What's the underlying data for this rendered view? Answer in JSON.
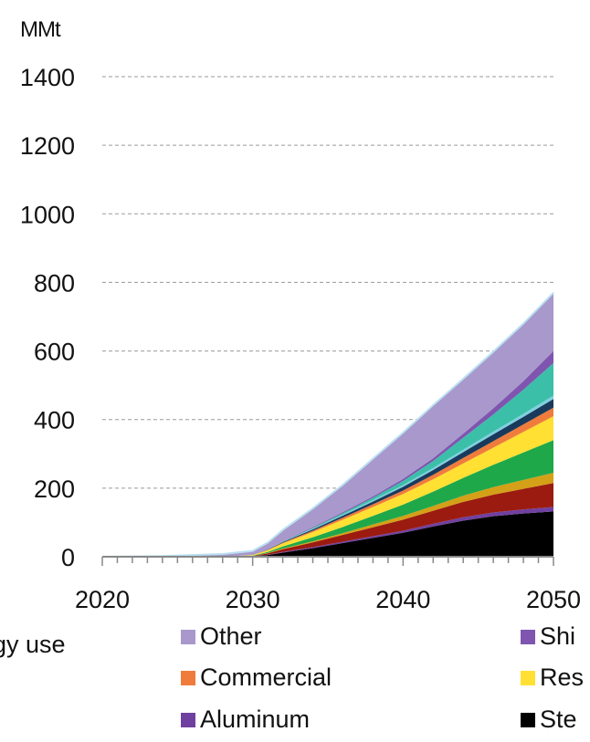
{
  "chart_data": {
    "type": "area",
    "stacked": true,
    "ylabel": "MMt",
    "ylim": [
      0,
      1400
    ],
    "xlim": [
      2020,
      2050
    ],
    "y_ticks": [
      0,
      200,
      400,
      600,
      800,
      1000,
      1200,
      1400
    ],
    "x_ticks": [
      2020,
      2030,
      2040,
      2050
    ],
    "grid": "horizontal dashed",
    "legend_position": "bottom",
    "x": [
      2020,
      2024,
      2026,
      2028,
      2030,
      2031,
      2032,
      2034,
      2036,
      2038,
      2040,
      2042,
      2044,
      2046,
      2048,
      2050
    ],
    "series": [
      {
        "name": "Ste",
        "color": "#000000",
        "values": [
          0,
          0,
          0,
          0,
          1,
          5,
          12,
          25,
          40,
          55,
          70,
          88,
          105,
          118,
          126,
          132
        ]
      },
      {
        "name": "Aluminum",
        "color": "#7040a0",
        "values": [
          0,
          0,
          0,
          0,
          0,
          1,
          2,
          3,
          4,
          5,
          6,
          8,
          10,
          11,
          12,
          13
        ]
      },
      {
        "name": "",
        "color": "#9b1b10",
        "values": [
          0,
          0,
          0,
          0,
          1,
          4,
          8,
          14,
          20,
          26,
          32,
          38,
          45,
          52,
          60,
          70
        ]
      },
      {
        "name": "",
        "color": "#d4a017",
        "values": [
          0,
          0,
          0,
          0,
          0,
          1,
          2,
          3,
          5,
          8,
          11,
          14,
          18,
          22,
          26,
          30
        ]
      },
      {
        "name": "",
        "color": "#1fa84a",
        "values": [
          0,
          0,
          0,
          0,
          1,
          3,
          6,
          12,
          18,
          25,
          33,
          42,
          52,
          65,
          80,
          95
        ]
      },
      {
        "name": "Res",
        "color": "#ffe033",
        "values": [
          0,
          0,
          0,
          0,
          2,
          5,
          9,
          15,
          21,
          26,
          31,
          36,
          42,
          50,
          60,
          70
        ]
      },
      {
        "name": "Commercial",
        "color": "#f07c3c",
        "values": [
          0,
          0,
          0,
          0,
          0,
          1,
          2,
          4,
          6,
          8,
          10,
          13,
          16,
          19,
          22,
          25
        ]
      },
      {
        "name": "",
        "color": "#1a3a5c",
        "values": [
          0,
          0,
          0,
          0,
          0,
          1,
          2,
          4,
          6,
          8,
          11,
          14,
          17,
          20,
          22,
          25
        ]
      },
      {
        "name": "",
        "color": "#7fd0e0",
        "values": [
          0,
          0,
          0,
          0,
          0,
          0,
          1,
          2,
          3,
          4,
          5,
          6,
          7,
          8,
          9,
          10
        ]
      },
      {
        "name": "",
        "color": "#3cbfa8",
        "values": [
          0,
          0,
          0,
          0,
          0,
          0,
          1,
          2,
          4,
          7,
          12,
          20,
          35,
          50,
          70,
          95
        ]
      },
      {
        "name": "Ship",
        "color": "#7f55b0",
        "values": [
          0,
          0,
          0,
          0,
          0,
          0,
          1,
          2,
          3,
          4,
          6,
          8,
          12,
          18,
          25,
          35
        ]
      },
      {
        "name": "Other",
        "color": "#a898cc",
        "values": [
          0,
          2,
          5,
          8,
          12,
          20,
          32,
          55,
          80,
          110,
          135,
          155,
          160,
          165,
          168,
          170
        ]
      }
    ],
    "legend": {
      "partial_label": "gy use",
      "items": [
        {
          "label": "Other",
          "color": "#a898cc"
        },
        {
          "label": "Shi",
          "color": "#7f55b0"
        },
        {
          "label": "Commercial",
          "color": "#f07c3c"
        },
        {
          "label": "Res",
          "color": "#ffe033"
        },
        {
          "label": "Aluminum",
          "color": "#7040a0"
        },
        {
          "label": "Ste",
          "color": "#000000"
        }
      ]
    }
  }
}
